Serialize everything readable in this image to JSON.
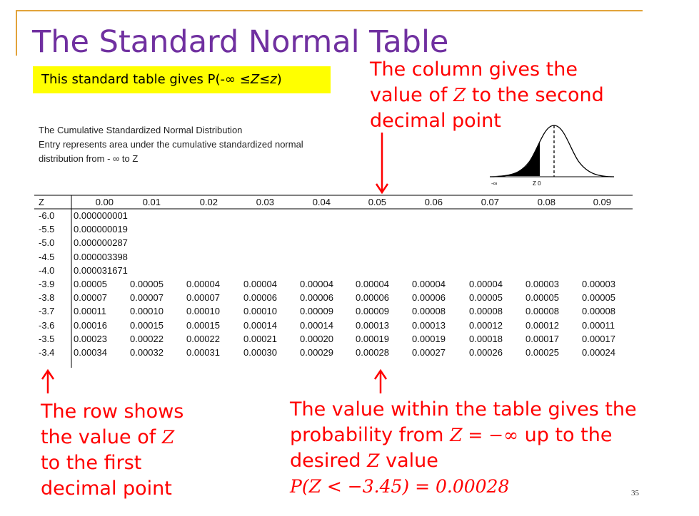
{
  "slide": {
    "title": "The Standard Normal Table",
    "highlight_prefix": "This standard table gives P(-",
    "highlight_infinity": "∞",
    "highlight_le1": " ≤",
    "highlight_Z": "Z",
    "highlight_le2": "≤",
    "highlight_z": "z",
    "highlight_suffix": ")",
    "page_number": "35"
  },
  "table_header": {
    "line1": "The Cumulative Standardized Normal Distribution",
    "line2": "Entry represents area under the cumulative standardized normal",
    "line3": "distribution from - ∞ to Z",
    "graphic_label_left": "-∞",
    "graphic_label_right": "Z  0"
  },
  "table": {
    "corner_label": "Z",
    "columns": [
      "0.00",
      "0.01",
      "0.02",
      "0.03",
      "0.04",
      "0.05",
      "0.06",
      "0.07",
      "0.08",
      "0.09"
    ],
    "rows": [
      {
        "z": "-6.0",
        "values": [
          "0.000000001"
        ]
      },
      {
        "z": "-5.5",
        "values": [
          "0.000000019"
        ]
      },
      {
        "z": "-5.0",
        "values": [
          "0.000000287"
        ]
      },
      {
        "z": "-4.5",
        "values": [
          "0.000003398"
        ]
      },
      {
        "z": "-4.0",
        "values": [
          "0.000031671"
        ]
      },
      {
        "z": "-3.9",
        "values": [
          "0.00005",
          "0.00005",
          "0.00004",
          "0.00004",
          "0.00004",
          "0.00004",
          "0.00004",
          "0.00004",
          "0.00003",
          "0.00003"
        ]
      },
      {
        "z": "-3.8",
        "values": [
          "0.00007",
          "0.00007",
          "0.00007",
          "0.00006",
          "0.00006",
          "0.00006",
          "0.00006",
          "0.00005",
          "0.00005",
          "0.00005"
        ]
      },
      {
        "z": "-3.7",
        "values": [
          "0.00011",
          "0.00010",
          "0.00010",
          "0.00010",
          "0.00009",
          "0.00009",
          "0.00008",
          "0.00008",
          "0.00008",
          "0.00008"
        ]
      },
      {
        "z": "-3.6",
        "values": [
          "0.00016",
          "0.00015",
          "0.00015",
          "0.00014",
          "0.00014",
          "0.00013",
          "0.00013",
          "0.00012",
          "0.00012",
          "0.00011"
        ]
      },
      {
        "z": "-3.5",
        "values": [
          "0.00023",
          "0.00022",
          "0.00022",
          "0.00021",
          "0.00020",
          "0.00019",
          "0.00019",
          "0.00018",
          "0.00017",
          "0.00017"
        ]
      },
      {
        "z": "-3.4",
        "values": [
          "0.00034",
          "0.00032",
          "0.00031",
          "0.00030",
          "0.00029",
          "0.00028",
          "0.00027",
          "0.00026",
          "0.00025",
          "0.00024"
        ]
      }
    ]
  },
  "annotations": {
    "column_l1_a": "The column gives the",
    "column_l2_a": "value of ",
    "column_l2_var": "Z",
    "column_l2_b": " to the second",
    "column_l3": "decimal point",
    "row_l1": "The row shows",
    "row_l2_a": "the value of ",
    "row_l2_var": "Z",
    "row_l3": "to the first",
    "row_l4": "decimal point",
    "value_l1": "The value within the table gives the",
    "value_l2_a": "probability from ",
    "value_l2_math": "Z = −∞",
    "value_l2_b": " up to the",
    "value_l3_a": "desired ",
    "value_l3_var": "Z",
    "value_l3_b": " value",
    "value_l4_math": "P(Z < −3.45) = 0.00028"
  },
  "colors": {
    "title": "#7030a0",
    "highlight": "#ffff00",
    "annotation": "#ff0000",
    "border": "#e2a33a"
  }
}
